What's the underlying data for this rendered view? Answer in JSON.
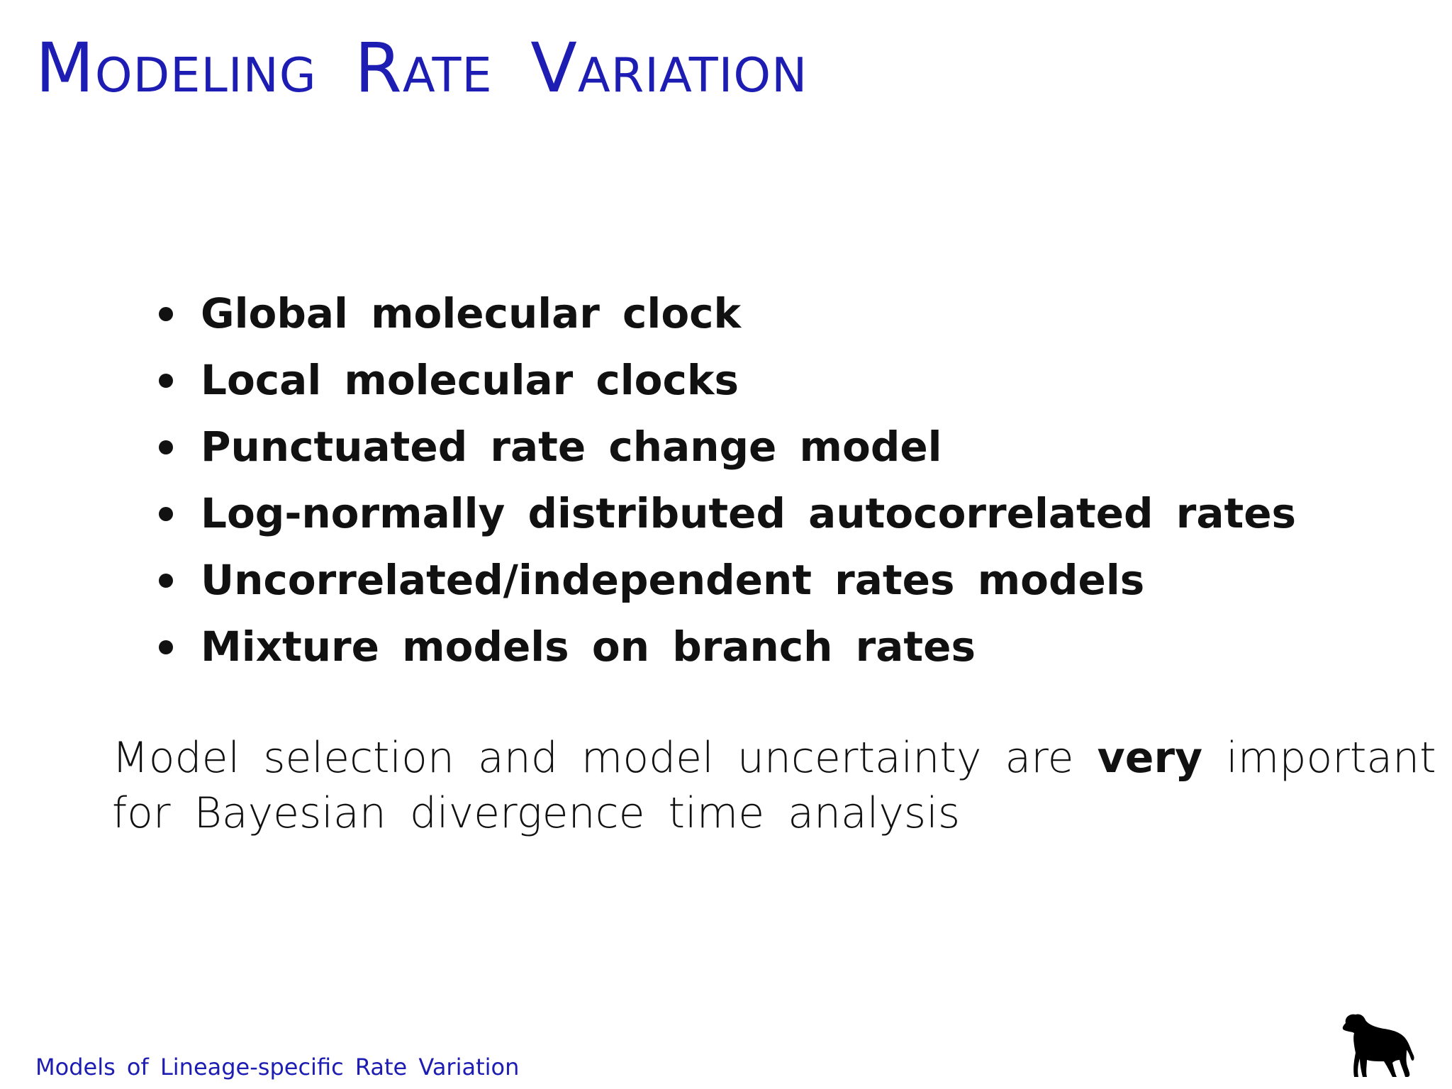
{
  "title": "Modeling Rate Variation",
  "bullets": [
    "Global molecular clock",
    "Local molecular clocks",
    "Punctuated rate change model",
    "Log-normally distributed autocorrelated rates",
    "Uncorrelated/independent rates models",
    "Mixture models on branch rates"
  ],
  "paragraph": {
    "lines": [
      [
        {
          "text": "Model selection and model uncertainty are",
          "bold": false
        },
        {
          "text": "very",
          "bold": true
        },
        {
          "text": "important",
          "bold": false
        }
      ],
      [
        {
          "text": "for Bayesian divergence time analysis",
          "bold": false
        }
      ]
    ]
  },
  "footer": "Models of Lineage-specific Rate Variation"
}
